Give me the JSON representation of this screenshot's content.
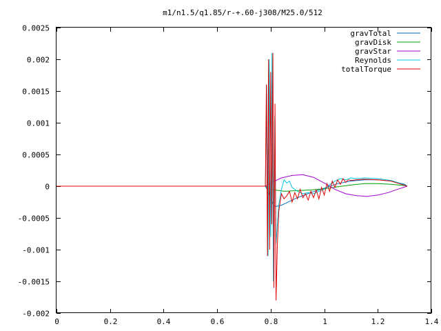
{
  "chart_data": {
    "type": "line",
    "title": "m1/n1.5/q1.85/r-+.60-j308/M25.0/512",
    "xlabel": "",
    "ylabel": "",
    "xlim": [
      0,
      1.4
    ],
    "ylim": [
      -0.002,
      0.0025
    ],
    "x_ticks": [
      "0",
      "0.2",
      "0.4",
      "0.6",
      "0.8",
      "1",
      "1.2",
      "1.4"
    ],
    "x_tick_values": [
      0,
      0.2,
      0.4,
      0.6,
      0.8,
      1.0,
      1.2,
      1.4
    ],
    "y_ticks": [
      "0.0025",
      "0.002",
      "0.0015",
      "0.001",
      "0.0005",
      "0",
      "-0.0005",
      "-0.001",
      "-0.0015",
      "-0.002"
    ],
    "y_tick_values": [
      0.0025,
      0.002,
      0.0015,
      0.001,
      0.0005,
      0,
      -0.0005,
      -0.001,
      -0.0015,
      -0.002
    ],
    "grid": false,
    "legend_position": "top-right",
    "series": [
      {
        "name": "gravTotal",
        "color": "#0070c0",
        "x": [
          0,
          0.78,
          0.79,
          0.8,
          0.81,
          0.82,
          0.84,
          0.86,
          0.9,
          0.95,
          1.0,
          1.05,
          1.1,
          1.15,
          1.2,
          1.25,
          1.3,
          1.31
        ],
        "y": [
          0,
          0,
          -8e-05,
          -0.0002,
          -0.0003,
          -0.00032,
          -0.0003,
          -0.00026,
          -0.00018,
          -0.0001,
          -3e-05,
          4e-05,
          8e-05,
          0.0001,
          0.0001,
          8e-05,
          3e-05,
          0
        ]
      },
      {
        "name": "gravDisk",
        "color": "#00a000",
        "x": [
          0,
          0.78,
          0.8,
          0.85,
          0.9,
          0.95,
          1.0,
          1.05,
          1.1,
          1.15,
          1.2,
          1.25,
          1.3,
          1.31
        ],
        "y": [
          0,
          0,
          -5e-05,
          -8e-05,
          -7e-05,
          -6e-05,
          -4e-05,
          -1e-05,
          2e-05,
          4e-05,
          4e-05,
          3e-05,
          1e-05,
          0
        ]
      },
      {
        "name": "gravStar",
        "color": "#a000d0",
        "x": [
          0,
          0.78,
          0.8,
          0.84,
          0.88,
          0.92,
          0.96,
          1.0,
          1.04,
          1.08,
          1.12,
          1.16,
          1.2,
          1.24,
          1.28,
          1.31
        ],
        "y": [
          0,
          0,
          5e-05,
          0.00013,
          0.00017,
          0.00018,
          0.00014,
          5e-05,
          -5e-05,
          -0.00012,
          -0.00015,
          -0.00016,
          -0.00014,
          -0.0001,
          -4e-05,
          0
        ]
      },
      {
        "name": "Reynolds",
        "color": "#00c8e0",
        "x": [
          0,
          0.78,
          0.785,
          0.79,
          0.795,
          0.8,
          0.805,
          0.81,
          0.815,
          0.82,
          0.83,
          0.84,
          0.85,
          0.86,
          0.87,
          0.88,
          0.9,
          0.92,
          0.94,
          0.96,
          0.98,
          1.0,
          1.02,
          1.04,
          1.06,
          1.08,
          1.1,
          1.12,
          1.15,
          1.2,
          1.25,
          1.28,
          1.31
        ],
        "y": [
          0,
          0,
          0.0016,
          -0.0011,
          0.002,
          -0.0008,
          0.0021,
          -0.0015,
          0.0011,
          -0.0009,
          -0.0003,
          -5e-05,
          0.0001,
          5e-05,
          8e-05,
          -2e-05,
          -8e-05,
          -0.00012,
          -0.0001,
          -0.00012,
          -8e-05,
          -5e-05,
          2e-05,
          8e-05,
          0.00012,
          0.0001,
          0.00013,
          0.00012,
          0.00013,
          0.00012,
          9e-05,
          5e-05,
          0
        ]
      },
      {
        "name": "totalTorque",
        "color": "#e00000",
        "x": [
          0,
          0.78,
          0.784,
          0.788,
          0.792,
          0.796,
          0.8,
          0.804,
          0.808,
          0.812,
          0.816,
          0.82,
          0.825,
          0.83,
          0.84,
          0.85,
          0.86,
          0.87,
          0.88,
          0.89,
          0.9,
          0.91,
          0.92,
          0.93,
          0.94,
          0.95,
          0.96,
          0.97,
          0.98,
          0.99,
          1.0,
          1.01,
          1.02,
          1.03,
          1.04,
          1.05,
          1.06,
          1.07,
          1.08,
          1.09,
          1.1,
          1.12,
          1.15,
          1.2,
          1.25,
          1.28,
          1.31
        ],
        "y": [
          0,
          0,
          0.0016,
          -0.0011,
          0.002,
          -0.001,
          0.0018,
          -0.0006,
          0.0021,
          -0.0016,
          0.0013,
          -0.0018,
          -0.0009,
          -0.0004,
          -0.00012,
          -0.0002,
          -0.00015,
          -8e-05,
          -0.00025,
          -0.0001,
          -0.0002,
          -5e-05,
          -0.00018,
          -0.00012,
          -0.00022,
          -8e-05,
          -0.00018,
          -6e-05,
          -0.0002,
          -2e-05,
          -0.00014,
          4e-05,
          -8e-05,
          8e-05,
          -2e-05,
          0.0001,
          3e-05,
          0.00012,
          6e-05,
          0.0001,
          9e-05,
          0.0001,
          0.00011,
          0.0001,
          8e-05,
          4e-05,
          0
        ]
      }
    ]
  }
}
